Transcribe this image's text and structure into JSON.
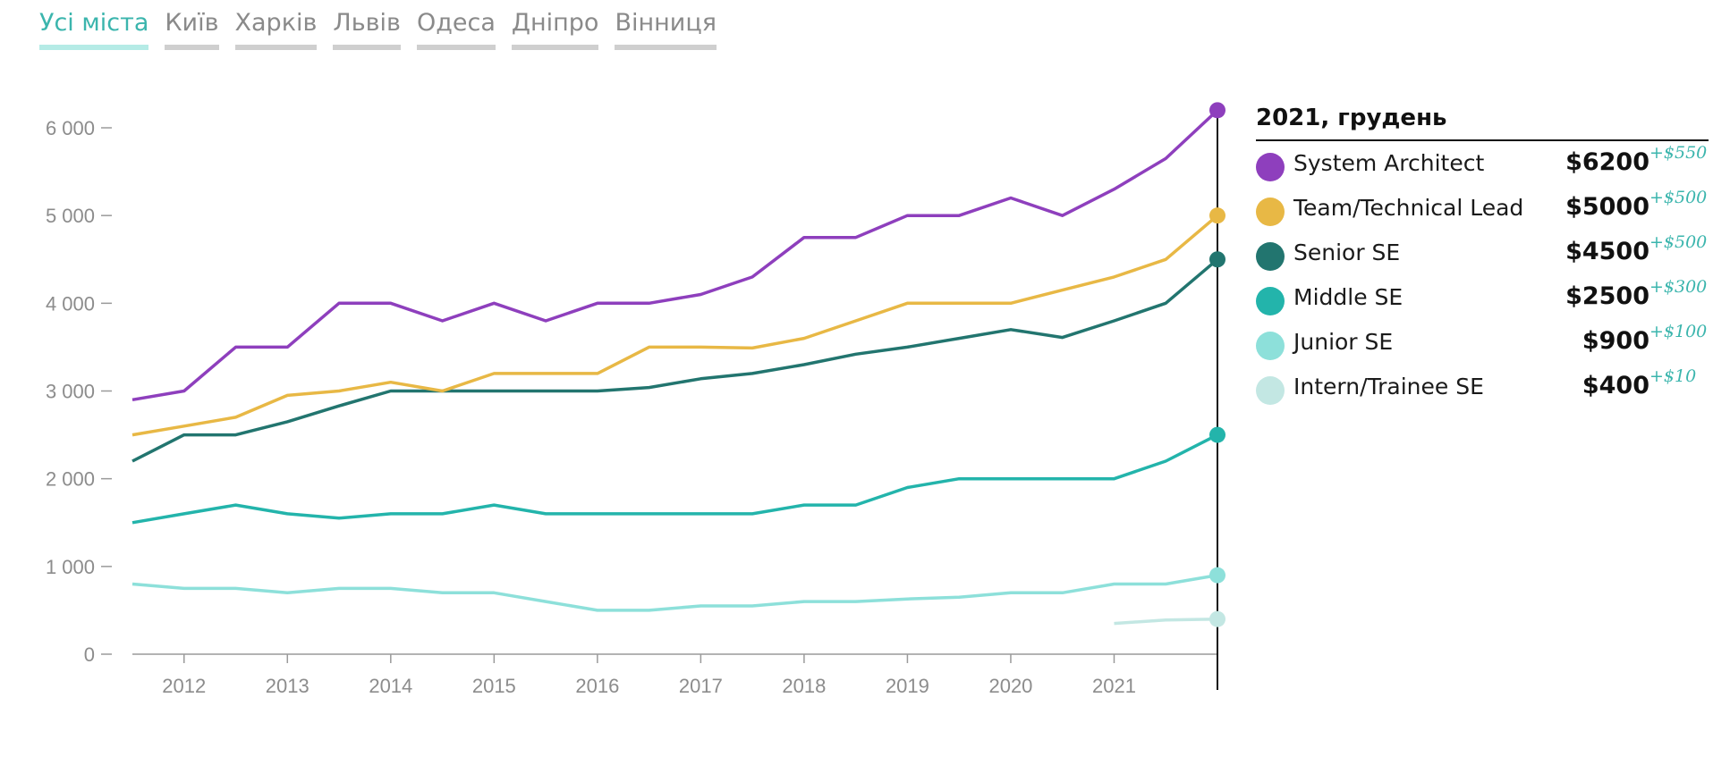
{
  "tabs": [
    {
      "label": "Усі міста",
      "active": true
    },
    {
      "label": "Київ",
      "active": false
    },
    {
      "label": "Харків",
      "active": false
    },
    {
      "label": "Львів",
      "active": false
    },
    {
      "label": "Одеса",
      "active": false
    },
    {
      "label": "Дніпро",
      "active": false
    },
    {
      "label": "Вінниця",
      "active": false
    }
  ],
  "legend": {
    "title": "2021, грудень",
    "items": [
      {
        "name": "System Architect",
        "value": "$6200",
        "change": "+$550",
        "color": "#8e3fbd"
      },
      {
        "name": "Team/Technical Lead",
        "value": "$5000",
        "change": "+$500",
        "color": "#e8b845"
      },
      {
        "name": "Senior SE",
        "value": "$4500",
        "change": "+$500",
        "color": "#22756f"
      },
      {
        "name": "Middle SE",
        "value": "$2500",
        "change": "+$300",
        "color": "#23b4ab"
      },
      {
        "name": "Junior SE",
        "value": "$900",
        "change": "+$100",
        "color": "#8de0da"
      },
      {
        "name": "Intern/Trainee SE",
        "value": "$400",
        "change": "+$10",
        "color": "#c3e7e3"
      }
    ]
  },
  "chart_data": {
    "type": "line",
    "title": "",
    "xlabel": "",
    "ylabel": "",
    "x": [
      2011.5,
      2012.0,
      2012.5,
      2013.0,
      2013.5,
      2014.0,
      2014.5,
      2015.0,
      2015.5,
      2016.0,
      2016.5,
      2017.0,
      2017.5,
      2018.0,
      2018.5,
      2019.0,
      2019.5,
      2020.0,
      2020.5,
      2021.0,
      2021.5,
      2022.0
    ],
    "xlim": [
      2011.5,
      2022.0
    ],
    "x_ticks": [
      2012,
      2013,
      2014,
      2015,
      2016,
      2017,
      2018,
      2019,
      2020,
      2021
    ],
    "x_tick_labels": [
      "2012",
      "2013",
      "2014",
      "2015",
      "2016",
      "2017",
      "2018",
      "2019",
      "2020",
      "2021"
    ],
    "ylim": [
      0,
      6000
    ],
    "y_ticks": [
      0,
      1000,
      2000,
      3000,
      4000,
      5000,
      6000
    ],
    "y_tick_labels": [
      "0",
      "1 000",
      "2 000",
      "3 000",
      "4 000",
      "5 000",
      "6 000"
    ],
    "highlight": {
      "x": 2022.0,
      "label": "2021, грудень"
    },
    "series": [
      {
        "name": "System Architect",
        "color": "#8e3fbd",
        "values": [
          2900,
          3000,
          3500,
          3500,
          4000,
          4000,
          3800,
          4000,
          3800,
          4000,
          4000,
          4100,
          4300,
          4750,
          4750,
          5000,
          5000,
          5200,
          5000,
          5300,
          5650,
          6200
        ]
      },
      {
        "name": "Team/Technical Lead",
        "color": "#e8b845",
        "values": [
          2500,
          2600,
          2700,
          2950,
          3000,
          3100,
          3000,
          3200,
          3200,
          3200,
          3500,
          3500,
          3490,
          3600,
          3800,
          4000,
          4000,
          4000,
          4150,
          4300,
          4500,
          5000
        ]
      },
      {
        "name": "Senior SE",
        "color": "#22756f",
        "values": [
          2200,
          2500,
          2500,
          2650,
          2830,
          3000,
          3000,
          3000,
          3000,
          3000,
          3040,
          3140,
          3200,
          3300,
          3420,
          3500,
          3600,
          3700,
          3610,
          3800,
          4000,
          4500
        ]
      },
      {
        "name": "Middle SE",
        "color": "#23b4ab",
        "values": [
          1500,
          1600,
          1700,
          1600,
          1550,
          1600,
          1600,
          1700,
          1600,
          1600,
          1600,
          1600,
          1600,
          1700,
          1700,
          1900,
          2000,
          2000,
          2000,
          2000,
          2200,
          2500
        ]
      },
      {
        "name": "Junior SE",
        "color": "#8de0da",
        "values": [
          800,
          750,
          750,
          700,
          750,
          750,
          700,
          700,
          600,
          500,
          500,
          550,
          550,
          600,
          600,
          630,
          650,
          700,
          700,
          800,
          800,
          900
        ]
      },
      {
        "name": "Intern/Trainee SE",
        "color": "#c3e7e3",
        "values": [
          null,
          null,
          null,
          null,
          null,
          null,
          null,
          null,
          null,
          null,
          null,
          null,
          null,
          null,
          null,
          null,
          null,
          null,
          null,
          350,
          390,
          400
        ]
      }
    ]
  }
}
